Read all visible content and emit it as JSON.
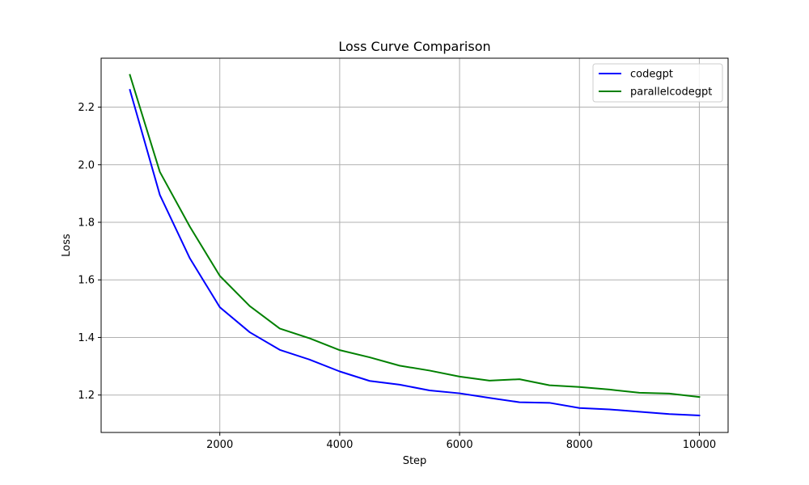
{
  "chart_data": {
    "type": "line",
    "title": "Loss Curve Comparison",
    "xlabel": "Step",
    "ylabel": "Loss",
    "xlim": [
      20,
      10480
    ],
    "ylim": [
      1.07,
      2.37
    ],
    "xticks": [
      2000,
      4000,
      6000,
      8000,
      10000
    ],
    "yticks": [
      1.2,
      1.4,
      1.6,
      1.8,
      2.0,
      2.2
    ],
    "grid": true,
    "legend_position": "top-right",
    "x": [
      500,
      1000,
      1500,
      2000,
      2500,
      3000,
      3500,
      4000,
      4500,
      5000,
      5500,
      6000,
      6500,
      7000,
      7500,
      8000,
      8500,
      9000,
      9500,
      10000
    ],
    "series": [
      {
        "name": "codegpt",
        "color": "#0000ff",
        "values": [
          2.26,
          1.895,
          1.675,
          1.505,
          1.418,
          1.357,
          1.323,
          1.282,
          1.249,
          1.236,
          1.216,
          1.206,
          1.19,
          1.175,
          1.173,
          1.155,
          1.15,
          1.142,
          1.134,
          1.129
        ]
      },
      {
        "name": "parallelcodegpt",
        "color": "#008000",
        "values": [
          2.312,
          1.975,
          1.785,
          1.614,
          1.509,
          1.431,
          1.397,
          1.356,
          1.331,
          1.302,
          1.285,
          1.264,
          1.25,
          1.255,
          1.234,
          1.228,
          1.219,
          1.208,
          1.205,
          1.193
        ]
      }
    ]
  }
}
